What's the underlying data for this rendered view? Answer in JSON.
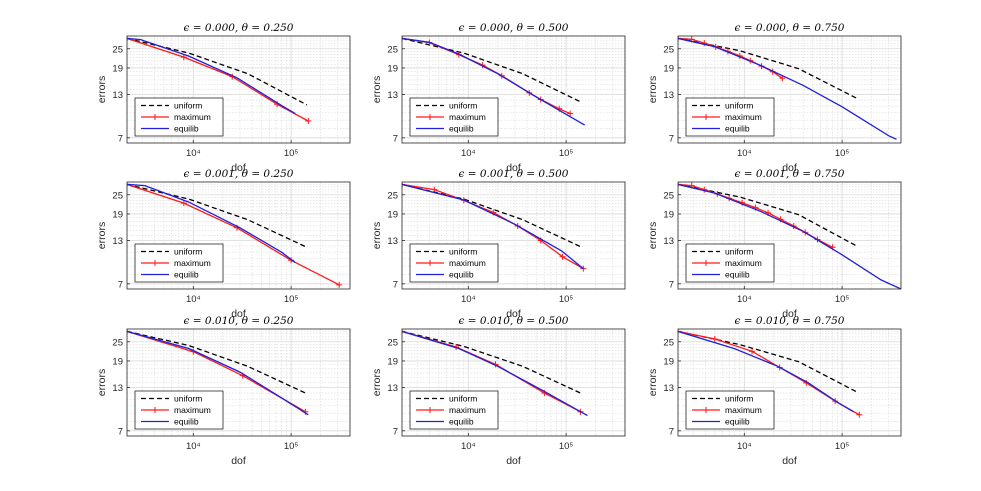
{
  "figure": {
    "legend_labels": [
      "uniform",
      "maximum",
      "equilib"
    ]
  },
  "colors": {
    "uniform": "#000000",
    "maximum": "#ff1a1a",
    "equilib": "#1f1fdd",
    "grid": "#d9d9d9",
    "axis": "#262626"
  },
  "chart_data": [
    {
      "type": "line",
      "title": "ϵ = 0.000, θ = 0.250",
      "xlabel": "dof",
      "ylabel": "errors",
      "xscale": "log",
      "yscale": "log",
      "xlim": [
        2100,
        400000
      ],
      "ylim": [
        6.5,
        30
      ],
      "yticks": [
        7,
        13,
        19,
        25
      ],
      "xtick_labels": [
        "10⁴",
        "10⁵"
      ],
      "legend_position": "lower-left",
      "series": [
        {
          "name": "uniform",
          "style": "dashed",
          "x": [
            2100,
            9000,
            36000,
            145000
          ],
          "y": [
            29,
            23.5,
            17.5,
            11.2
          ]
        },
        {
          "name": "maximum",
          "style": "solid-plus",
          "x": [
            2100,
            8000,
            25000,
            72000,
            150000
          ],
          "y": [
            29,
            22.2,
            16.8,
            11.3,
            8.9
          ]
        },
        {
          "name": "equilib",
          "style": "solid",
          "x": [
            2100,
            2900,
            9000,
            28000,
            80000,
            110000
          ],
          "y": [
            29,
            28.5,
            22.5,
            16.5,
            11.1,
            9.9
          ]
        }
      ]
    },
    {
      "type": "line",
      "title": "ϵ = 0.000, θ = 0.500",
      "xlabel": "dof",
      "ylabel": "errors",
      "xscale": "log",
      "yscale": "log",
      "xlim": [
        2100,
        400000
      ],
      "ylim": [
        6.5,
        30
      ],
      "yticks": [
        7,
        13,
        19,
        25
      ],
      "xtick_labels": [
        "10⁴",
        "10⁵"
      ],
      "legend_position": "lower-left",
      "series": [
        {
          "name": "uniform",
          "style": "dashed",
          "x": [
            2100,
            9000,
            36000,
            145000
          ],
          "y": [
            29,
            23.5,
            17.5,
            11.6
          ]
        },
        {
          "name": "maximum",
          "style": "solid-plus",
          "x": [
            2100,
            4000,
            8000,
            14000,
            22000,
            42000,
            55000,
            85000,
            110000
          ],
          "y": [
            29,
            27.3,
            23.0,
            19.8,
            17.0,
            13.3,
            12.1,
            10.6,
            9.9
          ]
        },
        {
          "name": "equilib",
          "style": "solid",
          "x": [
            2100,
            4000,
            8000,
            20000,
            50000,
            100000,
            155000
          ],
          "y": [
            29,
            27.4,
            23.2,
            17.5,
            12.5,
            9.8,
            8.4
          ]
        }
      ]
    },
    {
      "type": "line",
      "title": "ϵ = 0.000, θ = 0.750",
      "xlabel": "dof",
      "ylabel": "errors",
      "xscale": "log",
      "yscale": "log",
      "xlim": [
        2100,
        400000
      ],
      "ylim": [
        6.5,
        30
      ],
      "yticks": [
        7,
        13,
        19,
        25
      ],
      "xtick_labels": [
        "10⁴",
        "10⁵"
      ],
      "legend_position": "lower-left",
      "series": [
        {
          "name": "uniform",
          "style": "dashed",
          "x": [
            2100,
            9000,
            36000,
            145000
          ],
          "y": [
            29,
            24.3,
            18.8,
            12.2
          ]
        },
        {
          "name": "maximum",
          "style": "solid-plus",
          "x": [
            2100,
            2900,
            3900,
            5100,
            6800,
            9000,
            11500,
            15000,
            19500,
            24500
          ],
          "y": [
            29,
            28.6,
            27.1,
            25.7,
            24.1,
            22.6,
            21.1,
            19.5,
            18.0,
            16.4
          ]
        },
        {
          "name": "equilib",
          "style": "solid",
          "x": [
            2100,
            5000,
            15000,
            40000,
            100000,
            300000,
            360000
          ],
          "y": [
            29,
            25.7,
            19.6,
            14.8,
            10.9,
            7.2,
            6.85
          ]
        }
      ]
    },
    {
      "type": "line",
      "title": "ϵ = 0.001, θ = 0.250",
      "xlabel": "dof",
      "ylabel": "errors",
      "xscale": "log",
      "yscale": "log",
      "xlim": [
        2100,
        400000
      ],
      "ylim": [
        6.5,
        30
      ],
      "yticks": [
        7,
        13,
        19,
        25
      ],
      "xtick_labels": [
        "10⁴",
        "10⁵"
      ],
      "legend_position": "lower-left",
      "series": [
        {
          "name": "uniform",
          "style": "dashed",
          "x": [
            2100,
            9000,
            36000,
            145000
          ],
          "y": [
            29,
            23.5,
            17.5,
            11.8
          ]
        },
        {
          "name": "maximum",
          "style": "solid-plus",
          "x": [
            2100,
            8000,
            28000,
            100000,
            310000
          ],
          "y": [
            29,
            22.2,
            15.6,
            9.8,
            6.9
          ]
        },
        {
          "name": "equilib",
          "style": "solid",
          "x": [
            2100,
            3200,
            9000,
            30000,
            80000,
            110000
          ],
          "y": [
            29,
            28.5,
            22.5,
            15.6,
            11.0,
            9.5
          ]
        }
      ]
    },
    {
      "type": "line",
      "title": "ϵ = 0.001, θ = 0.500",
      "xlabel": "dof",
      "ylabel": "errors",
      "xscale": "log",
      "yscale": "log",
      "xlim": [
        2100,
        400000
      ],
      "ylim": [
        6.5,
        30
      ],
      "yticks": [
        7,
        13,
        19,
        25
      ],
      "xtick_labels": [
        "10⁴",
        "10⁵"
      ],
      "legend_position": "lower-left",
      "series": [
        {
          "name": "uniform",
          "style": "dashed",
          "x": [
            2100,
            9000,
            36000,
            145000
          ],
          "y": [
            29,
            23.5,
            17.5,
            11.8
          ]
        },
        {
          "name": "maximum",
          "style": "solid-plus",
          "x": [
            2100,
            4500,
            9000,
            18000,
            32000,
            55000,
            92000,
            150000
          ],
          "y": [
            29,
            26.9,
            23.1,
            19.4,
            16.0,
            13.0,
            10.3,
            8.7
          ]
        },
        {
          "name": "equilib",
          "style": "solid",
          "x": [
            2100,
            9000,
            30000,
            90000,
            150000
          ],
          "y": [
            29,
            23.2,
            16.4,
            11.2,
            8.7
          ]
        }
      ]
    },
    {
      "type": "line",
      "title": "ϵ = 0.001, θ = 0.750",
      "xlabel": "dof",
      "ylabel": "errors",
      "xscale": "log",
      "yscale": "log",
      "xlim": [
        2100,
        400000
      ],
      "ylim": [
        6.5,
        30
      ],
      "yticks": [
        7,
        13,
        19,
        25
      ],
      "xtick_labels": [
        "10⁴",
        "10⁵"
      ],
      "legend_position": "lower-left",
      "series": [
        {
          "name": "uniform",
          "style": "dashed",
          "x": [
            2100,
            9000,
            36000,
            145000
          ],
          "y": [
            29,
            24.2,
            18.8,
            11.9
          ]
        },
        {
          "name": "maximum",
          "style": "solid-plus",
          "x": [
            2100,
            2900,
            3900,
            5300,
            7000,
            9500,
            13000,
            17500,
            23500,
            32000,
            42000,
            56000,
            80000
          ],
          "y": [
            29,
            28.5,
            26.9,
            25.3,
            23.8,
            22.3,
            20.8,
            19.3,
            17.6,
            16.0,
            14.6,
            13.2,
            11.8
          ]
        },
        {
          "name": "equilib",
          "style": "solid",
          "x": [
            2100,
            5000,
            15000,
            40000,
            100000,
            250000,
            400000
          ],
          "y": [
            29,
            25.6,
            19.6,
            14.8,
            10.6,
            7.4,
            6.5
          ]
        }
      ]
    },
    {
      "type": "line",
      "title": "ϵ = 0.010, θ = 0.250",
      "xlabel": "dof",
      "ylabel": "errors",
      "xscale": "log",
      "yscale": "log",
      "xlim": [
        2100,
        400000
      ],
      "ylim": [
        6.5,
        30
      ],
      "yticks": [
        7,
        13,
        19,
        25
      ],
      "xtick_labels": [
        "10⁴",
        "10⁵"
      ],
      "legend_position": "lower-left",
      "series": [
        {
          "name": "uniform",
          "style": "dashed",
          "x": [
            2100,
            9000,
            36000,
            145000
          ],
          "y": [
            29,
            23.7,
            17.6,
            11.9
          ]
        },
        {
          "name": "maximum",
          "style": "solid-plus",
          "x": [
            2100,
            10000,
            32000,
            140000
          ],
          "y": [
            29,
            21.7,
            15.4,
            9.2
          ]
        },
        {
          "name": "equilib",
          "style": "solid",
          "x": [
            2100,
            9000,
            30000,
            80000,
            150000
          ],
          "y": [
            29,
            22.7,
            16.2,
            11.2,
            8.8
          ]
        }
      ]
    },
    {
      "type": "line",
      "title": "ϵ = 0.010, θ = 0.500",
      "xlabel": "dof",
      "ylabel": "errors",
      "xscale": "log",
      "yscale": "log",
      "xlim": [
        2100,
        400000
      ],
      "ylim": [
        6.5,
        30
      ],
      "yticks": [
        7,
        13,
        19,
        25
      ],
      "xtick_labels": [
        "10⁴",
        "10⁵"
      ],
      "legend_position": "lower-left",
      "series": [
        {
          "name": "uniform",
          "style": "dashed",
          "x": [
            2100,
            9000,
            36000,
            145000
          ],
          "y": [
            29,
            23.4,
            17.6,
            11.9
          ]
        },
        {
          "name": "maximum",
          "style": "solid-plus",
          "x": [
            2100,
            7500,
            19000,
            60000,
            140000
          ],
          "y": [
            29,
            23.2,
            18.1,
            12.0,
            9.2
          ]
        },
        {
          "name": "equilib",
          "style": "solid",
          "x": [
            2100,
            8000,
            20000,
            60000,
            165000
          ],
          "y": [
            29,
            22.7,
            17.6,
            12.3,
            8.7
          ]
        }
      ]
    },
    {
      "type": "line",
      "title": "ϵ = 0.010, θ = 0.750",
      "xlabel": "dof",
      "ylabel": "errors",
      "xscale": "log",
      "yscale": "log",
      "xlim": [
        2100,
        400000
      ],
      "ylim": [
        6.5,
        30
      ],
      "yticks": [
        7,
        13,
        19,
        25
      ],
      "xtick_labels": [
        "10⁴",
        "10⁵"
      ],
      "legend_position": "lower-left",
      "series": [
        {
          "name": "uniform",
          "style": "dashed",
          "x": [
            2100,
            9000,
            36000,
            145000
          ],
          "y": [
            29,
            24.0,
            18.8,
            12.1
          ]
        },
        {
          "name": "maximum",
          "style": "solid-plus",
          "x": [
            2100,
            5000,
            12000,
            23000,
            43000,
            85000,
            150000
          ],
          "y": [
            29,
            26.0,
            21.8,
            17.3,
            13.9,
            10.7,
            8.8
          ]
        },
        {
          "name": "equilib",
          "style": "solid",
          "x": [
            2100,
            8000,
            22000,
            45000,
            90000,
            130000
          ],
          "y": [
            29,
            22.6,
            17.6,
            13.9,
            10.5,
            9.2
          ]
        }
      ]
    }
  ]
}
